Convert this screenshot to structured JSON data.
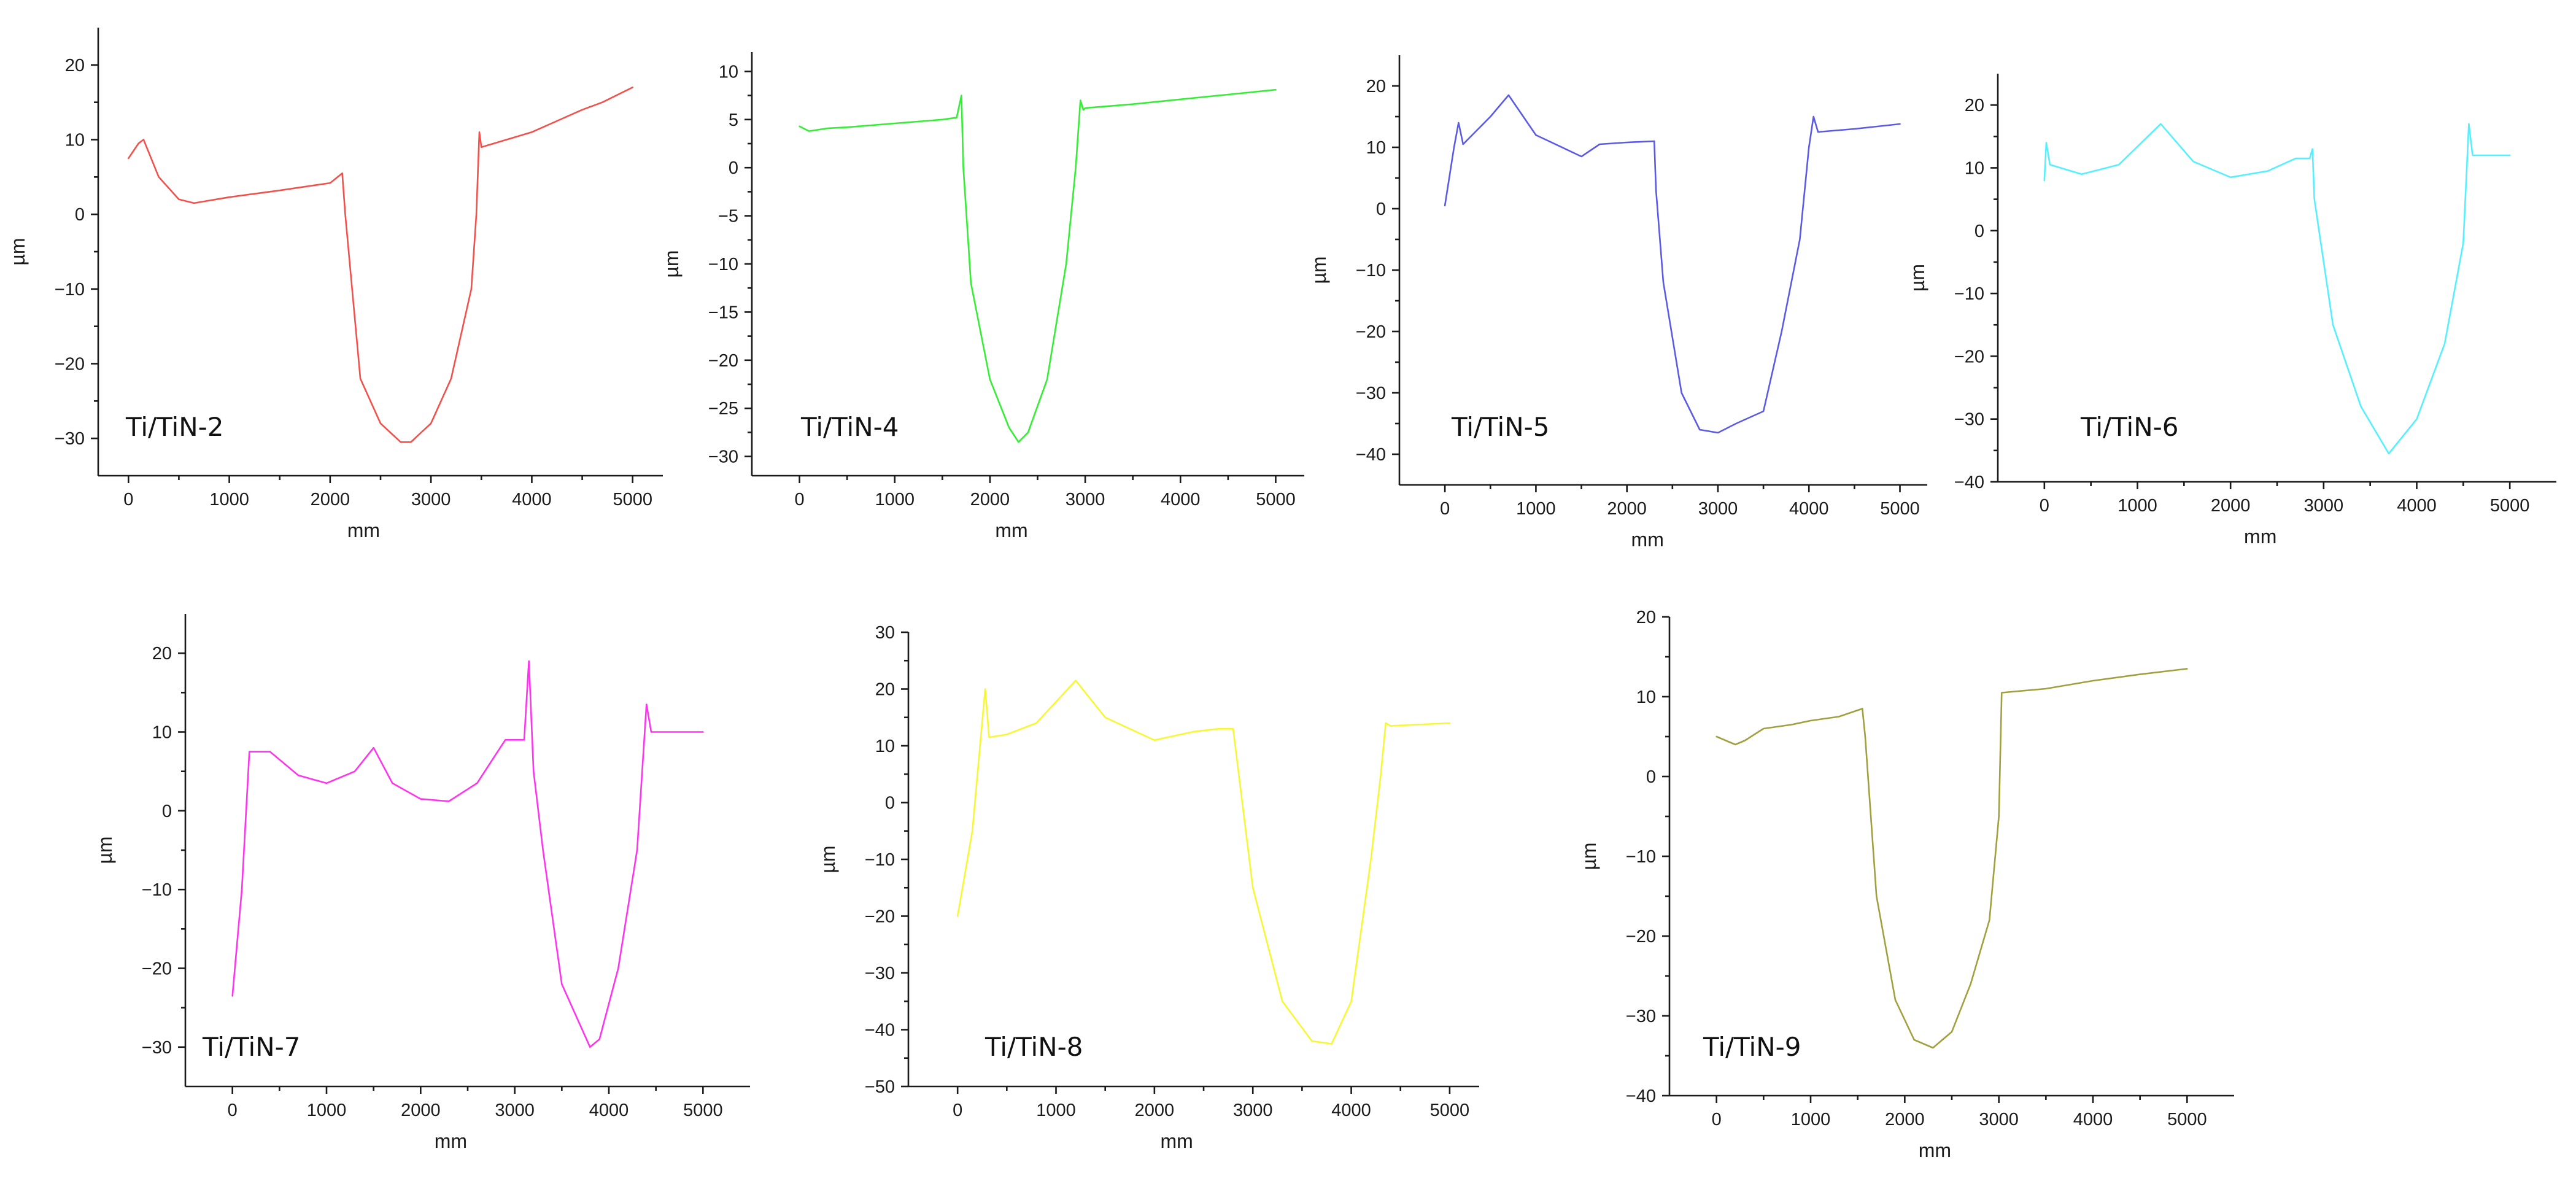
{
  "chart_data": [
    {
      "type": "line",
      "label": "Ti/TiN-2",
      "color": "#f2504b",
      "xlabel": "mm",
      "ylabel": "µm",
      "xlim": [
        -300,
        5300
      ],
      "ylim": [
        -35,
        25
      ],
      "xticks": [
        0,
        1000,
        2000,
        3000,
        4000,
        5000
      ],
      "yticks": [
        -30,
        -20,
        -10,
        0,
        10,
        20
      ],
      "x": [
        0,
        100,
        150,
        300,
        500,
        650,
        1000,
        1500,
        2000,
        2120,
        2150,
        2300,
        2500,
        2700,
        2800,
        3000,
        3200,
        3400,
        3450,
        3480,
        3500,
        4000,
        4500,
        4700,
        5000
      ],
      "y": [
        7.5,
        9.5,
        10,
        5,
        2,
        1.5,
        2.3,
        3.2,
        4.2,
        5.5,
        0,
        -22,
        -28,
        -30.5,
        -30.5,
        -28,
        -22,
        -10,
        0,
        11,
        9,
        11,
        14,
        15,
        17
      ]
    },
    {
      "type": "line",
      "label": "Ti/TiN-4",
      "color": "#33ee33",
      "xlabel": "mm",
      "ylabel": "µm",
      "xlim": [
        -500,
        5300
      ],
      "ylim": [
        -32,
        12
      ],
      "xticks": [
        0,
        1000,
        2000,
        3000,
        4000,
        5000
      ],
      "yticks": [
        -30,
        -25,
        -20,
        -15,
        -10,
        -5,
        0,
        5,
        10
      ],
      "x": [
        0,
        100,
        300,
        500,
        1000,
        1500,
        1650,
        1700,
        1720,
        1800,
        2000,
        2200,
        2300,
        2400,
        2600,
        2800,
        2900,
        2950,
        2980,
        3000,
        3500,
        4000,
        4500,
        5000
      ],
      "y": [
        4.3,
        3.8,
        4.1,
        4.2,
        4.6,
        5,
        5.2,
        7.5,
        0,
        -12,
        -22,
        -27,
        -28.5,
        -27.5,
        -22,
        -10,
        0,
        7,
        6,
        6.2,
        6.6,
        7.1,
        7.6,
        8.1
      ]
    },
    {
      "type": "line",
      "label": "Ti/TiN-5",
      "color": "#5a5ae6",
      "xlabel": "mm",
      "ylabel": "µm",
      "xlim": [
        -500,
        5300
      ],
      "ylim": [
        -45,
        25
      ],
      "xticks": [
        0,
        1000,
        2000,
        3000,
        4000,
        5000
      ],
      "yticks": [
        -40,
        -30,
        -20,
        -10,
        0,
        10,
        20
      ],
      "x": [
        0,
        100,
        150,
        200,
        500,
        700,
        1000,
        1500,
        1700,
        2000,
        2300,
        2320,
        2400,
        2600,
        2800,
        3000,
        3200,
        3500,
        3700,
        3900,
        4000,
        4050,
        4100,
        4500,
        5000
      ],
      "y": [
        0.5,
        10,
        14,
        10.5,
        15,
        18.5,
        12,
        8.5,
        10.5,
        10.8,
        11,
        3,
        -12,
        -30,
        -36,
        -36.5,
        -35,
        -33,
        -20,
        -5,
        10,
        15,
        12.5,
        13,
        13.8
      ]
    },
    {
      "type": "line",
      "label": "Ti/TiN-6",
      "color": "#55f0ff",
      "xlabel": "mm",
      "ylabel": "µm",
      "xlim": [
        -500,
        5500
      ],
      "ylim": [
        -40,
        25
      ],
      "xticks": [
        0,
        1000,
        2000,
        3000,
        4000,
        5000
      ],
      "yticks": [
        -40,
        -30,
        -20,
        -10,
        0,
        10,
        20
      ],
      "x": [
        0,
        20,
        60,
        400,
        800,
        1250,
        1600,
        2000,
        2400,
        2700,
        2850,
        2880,
        2900,
        3100,
        3400,
        3700,
        4000,
        4300,
        4500,
        4560,
        4600,
        5000
      ],
      "y": [
        8,
        14,
        10.5,
        9,
        10.5,
        17,
        11,
        8.5,
        9.5,
        11.5,
        11.5,
        13,
        5,
        -15,
        -28,
        -35.5,
        -30,
        -18,
        -2,
        17,
        12,
        12
      ]
    },
    {
      "type": "line",
      "label": "Ti/TiN-7",
      "color": "#ff33ee",
      "xlabel": "mm",
      "ylabel": "µm",
      "xlim": [
        -500,
        5500
      ],
      "ylim": [
        -35,
        25
      ],
      "xticks": [
        0,
        1000,
        2000,
        3000,
        4000,
        5000
      ],
      "yticks": [
        -30,
        -20,
        -10,
        0,
        10,
        20
      ],
      "x": [
        0,
        100,
        180,
        400,
        700,
        1000,
        1300,
        1500,
        1700,
        2000,
        2300,
        2600,
        2900,
        3100,
        3150,
        3200,
        3300,
        3500,
        3800,
        3900,
        4100,
        4300,
        4400,
        4450,
        5000
      ],
      "y": [
        -23.5,
        -10,
        7.5,
        7.5,
        4.5,
        3.5,
        5,
        8,
        3.5,
        1.5,
        1.2,
        3.5,
        9,
        9,
        19,
        5,
        -5,
        -22,
        -30,
        -29,
        -20,
        -5,
        13.5,
        10,
        10
      ]
    },
    {
      "type": "line",
      "label": "Ti/TiN-8",
      "color": "#f7f733",
      "xlabel": "mm",
      "ylabel": "µm",
      "xlim": [
        -500,
        5300
      ],
      "ylim": [
        -50,
        30
      ],
      "xticks": [
        0,
        1000,
        2000,
        3000,
        4000,
        5000
      ],
      "yticks": [
        -50,
        -40,
        -30,
        -20,
        -10,
        0,
        10,
        20,
        30
      ],
      "x": [
        0,
        150,
        280,
        320,
        500,
        800,
        1200,
        1500,
        2000,
        2400,
        2650,
        2800,
        3000,
        3300,
        3600,
        3800,
        4000,
        4200,
        4300,
        4350,
        4400,
        5000
      ],
      "y": [
        -20,
        -5,
        20,
        11.5,
        12,
        14,
        21.5,
        15,
        11,
        12.5,
        13,
        13,
        -15,
        -35,
        -42,
        -42.5,
        -35,
        -10,
        5,
        14,
        13.5,
        14
      ]
    },
    {
      "type": "line",
      "label": "Ti/TiN-9",
      "color": "#a1a03e",
      "xlabel": "mm",
      "ylabel": "µm",
      "xlim": [
        -500,
        5500
      ],
      "ylim": [
        -40,
        20
      ],
      "xticks": [
        0,
        1000,
        2000,
        3000,
        4000,
        5000
      ],
      "yticks": [
        -40,
        -30,
        -20,
        -10,
        0,
        10,
        20
      ],
      "x": [
        0,
        200,
        300,
        500,
        800,
        1000,
        1300,
        1550,
        1580,
        1700,
        1900,
        2100,
        2300,
        2500,
        2700,
        2900,
        3000,
        3030,
        3500,
        4000,
        4500,
        5000
      ],
      "y": [
        5,
        4,
        4.5,
        6,
        6.5,
        7,
        7.5,
        8.5,
        5,
        -15,
        -28,
        -33,
        -34,
        -32,
        -26,
        -18,
        -5,
        10.5,
        11,
        12,
        12.8,
        13.5
      ]
    }
  ]
}
